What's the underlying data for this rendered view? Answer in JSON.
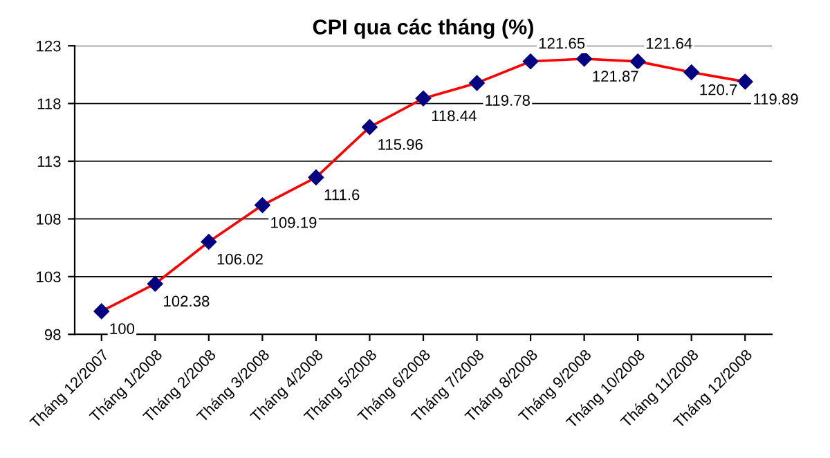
{
  "chart_data": {
    "type": "line",
    "title": "CPI qua các tháng (%)",
    "categories": [
      "Tháng 12/2007",
      "Tháng 1/2008",
      "Tháng 2/2008",
      "Tháng 3/2008",
      "Tháng 4/2008",
      "Tháng 5/2008",
      "Tháng 6/2008",
      "Tháng 7/2008",
      "Tháng 8/2008",
      "Tháng 9/2008",
      "Tháng 10/2008",
      "Tháng 11/2008",
      "Tháng 12/2008"
    ],
    "series": [
      {
        "color": "#ff0000",
        "values": [
          100,
          102.38,
          106.02,
          109.19,
          111.6,
          115.96,
          118.44,
          119.78,
          121.65,
          121.87,
          121.64,
          120.7,
          119.89
        ],
        "colors": [
          "#000080",
          "#000080",
          "#000080",
          "#000080",
          "#000080",
          "#000080",
          "#000080",
          "#000080",
          "#000080",
          "#000080",
          "#000080",
          "#000080",
          "#000080"
        ]
      }
    ],
    "ylim": [
      98,
      123
    ],
    "yticks": [
      98,
      103,
      108,
      113,
      118,
      123
    ],
    "grid": "y",
    "marker": "diamond",
    "data_labels": true,
    "legend": false
  }
}
